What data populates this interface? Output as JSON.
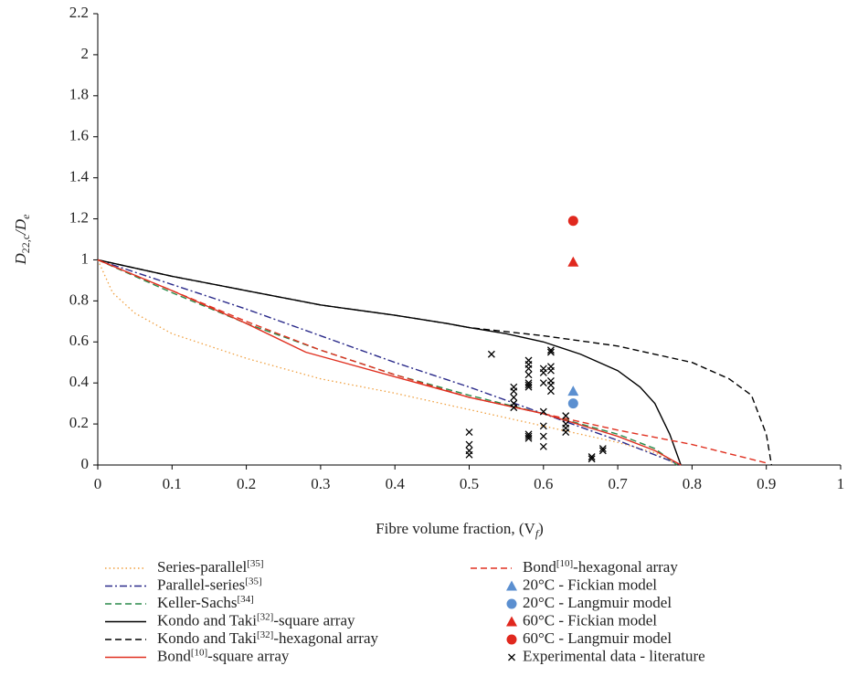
{
  "chart_data": {
    "type": "line",
    "x_label": [
      "Fibre volume fraction, (V",
      "f",
      ")"
    ],
    "y_label": [
      "D",
      "22,c",
      "/D",
      "e"
    ],
    "xlim": [
      0,
      1
    ],
    "xticks": [
      0,
      0.1,
      0.2,
      0.3,
      0.4,
      0.5,
      0.6,
      0.7,
      0.8,
      0.9,
      1
    ],
    "ylim": [
      0,
      2.2
    ],
    "yticks": [
      0,
      0.2,
      0.4,
      0.6,
      0.8,
      1,
      1.2,
      1.4,
      1.6,
      1.8,
      2,
      2.2
    ],
    "series": [
      {
        "name": "Series-parallel[35]",
        "type": "line",
        "style": "dotted",
        "color": "#f0a040",
        "x": [
          0,
          0.02,
          0.05,
          0.1,
          0.2,
          0.3,
          0.4,
          0.5,
          0.6,
          0.7,
          0.75,
          0.78
        ],
        "values": [
          1,
          0.84,
          0.74,
          0.64,
          0.52,
          0.42,
          0.35,
          0.27,
          0.19,
          0.11,
          0.06,
          0
        ]
      },
      {
        "name": "Parallel-series[35]",
        "type": "line",
        "style": "dashdot",
        "color": "#2a2a8a",
        "x": [
          0,
          0.1,
          0.2,
          0.3,
          0.4,
          0.5,
          0.6,
          0.7,
          0.785
        ],
        "values": [
          1,
          0.88,
          0.76,
          0.63,
          0.5,
          0.38,
          0.25,
          0.12,
          0
        ]
      },
      {
        "name": "Keller-Sachs[34]",
        "type": "line",
        "style": "dashed",
        "color": "#2a8a4a",
        "x": [
          0,
          0.1,
          0.2,
          0.3,
          0.4,
          0.5,
          0.6,
          0.7,
          0.75,
          0.78
        ],
        "values": [
          1,
          0.84,
          0.69,
          0.56,
          0.44,
          0.34,
          0.25,
          0.15,
          0.08,
          0
        ]
      },
      {
        "name": "Kondo and Taki[32]-square array",
        "type": "line",
        "style": "solid",
        "color": "#000000",
        "x": [
          0,
          0.1,
          0.2,
          0.3,
          0.4,
          0.47,
          0.5,
          0.55,
          0.6,
          0.65,
          0.7,
          0.73,
          0.75,
          0.77,
          0.785
        ],
        "values": [
          1,
          0.92,
          0.85,
          0.78,
          0.73,
          0.69,
          0.67,
          0.64,
          0.6,
          0.54,
          0.46,
          0.38,
          0.3,
          0.15,
          0
        ]
      },
      {
        "name": "Kondo and Taki[32]-hexagonal array",
        "type": "line",
        "style": "dashed",
        "color": "#000000",
        "x": [
          0,
          0.1,
          0.2,
          0.3,
          0.4,
          0.47,
          0.5,
          0.6,
          0.7,
          0.8,
          0.85,
          0.88,
          0.9,
          0.907
        ],
        "values": [
          1,
          0.92,
          0.85,
          0.78,
          0.73,
          0.69,
          0.67,
          0.63,
          0.58,
          0.5,
          0.42,
          0.34,
          0.15,
          0
        ]
      },
      {
        "name": "Bond[10]-square array",
        "type": "line",
        "style": "solid",
        "color": "#e03020",
        "x": [
          0,
          0.1,
          0.2,
          0.28,
          0.4,
          0.5,
          0.6,
          0.7,
          0.75,
          0.785
        ],
        "values": [
          1,
          0.85,
          0.69,
          0.55,
          0.43,
          0.33,
          0.25,
          0.14,
          0.07,
          0
        ]
      },
      {
        "name": "Bond[10]-hexagonal array",
        "type": "line",
        "style": "dashed",
        "color": "#e03020",
        "x": [
          0,
          0.1,
          0.2,
          0.3,
          0.4,
          0.5,
          0.6,
          0.7,
          0.8,
          0.9
        ],
        "values": [
          1,
          0.85,
          0.7,
          0.56,
          0.44,
          0.33,
          0.25,
          0.17,
          0.1,
          0.01
        ]
      },
      {
        "name": "20°C - Fickian model",
        "type": "scatter",
        "marker": "triangle",
        "color": "#5b8fd0",
        "x": [
          0.64
        ],
        "values": [
          0.36
        ]
      },
      {
        "name": "20°C - Langmuir model",
        "type": "scatter",
        "marker": "circle",
        "color": "#5b8fd0",
        "x": [
          0.64
        ],
        "values": [
          0.3
        ]
      },
      {
        "name": "60°C - Fickian model",
        "type": "scatter",
        "marker": "triangle",
        "color": "#e0281e",
        "x": [
          0.64
        ],
        "values": [
          0.99
        ]
      },
      {
        "name": "60°C - Langmuir model",
        "type": "scatter",
        "marker": "circle",
        "color": "#e0281e",
        "x": [
          0.64
        ],
        "values": [
          1.19
        ]
      },
      {
        "name": "Experimental data - literature",
        "type": "scatter",
        "marker": "x",
        "color": "#000000",
        "x": [
          0.5,
          0.5,
          0.5,
          0.5,
          0.53,
          0.56,
          0.56,
          0.56,
          0.56,
          0.56,
          0.58,
          0.58,
          0.58,
          0.58,
          0.58,
          0.58,
          0.58,
          0.58,
          0.58,
          0.58,
          0.6,
          0.6,
          0.6,
          0.6,
          0.6,
          0.6,
          0.6,
          0.61,
          0.61,
          0.61,
          0.61,
          0.61,
          0.61,
          0.61,
          0.63,
          0.63,
          0.63,
          0.63,
          0.665,
          0.665,
          0.68,
          0.68
        ],
        "values": [
          0.16,
          0.1,
          0.07,
          0.05,
          0.54,
          0.38,
          0.36,
          0.33,
          0.3,
          0.28,
          0.51,
          0.49,
          0.47,
          0.44,
          0.4,
          0.39,
          0.38,
          0.15,
          0.14,
          0.13,
          0.47,
          0.45,
          0.4,
          0.26,
          0.19,
          0.14,
          0.09,
          0.56,
          0.55,
          0.48,
          0.46,
          0.41,
          0.39,
          0.36,
          0.24,
          0.2,
          0.18,
          0.16,
          0.04,
          0.03,
          0.08,
          0.07
        ]
      }
    ]
  }
}
